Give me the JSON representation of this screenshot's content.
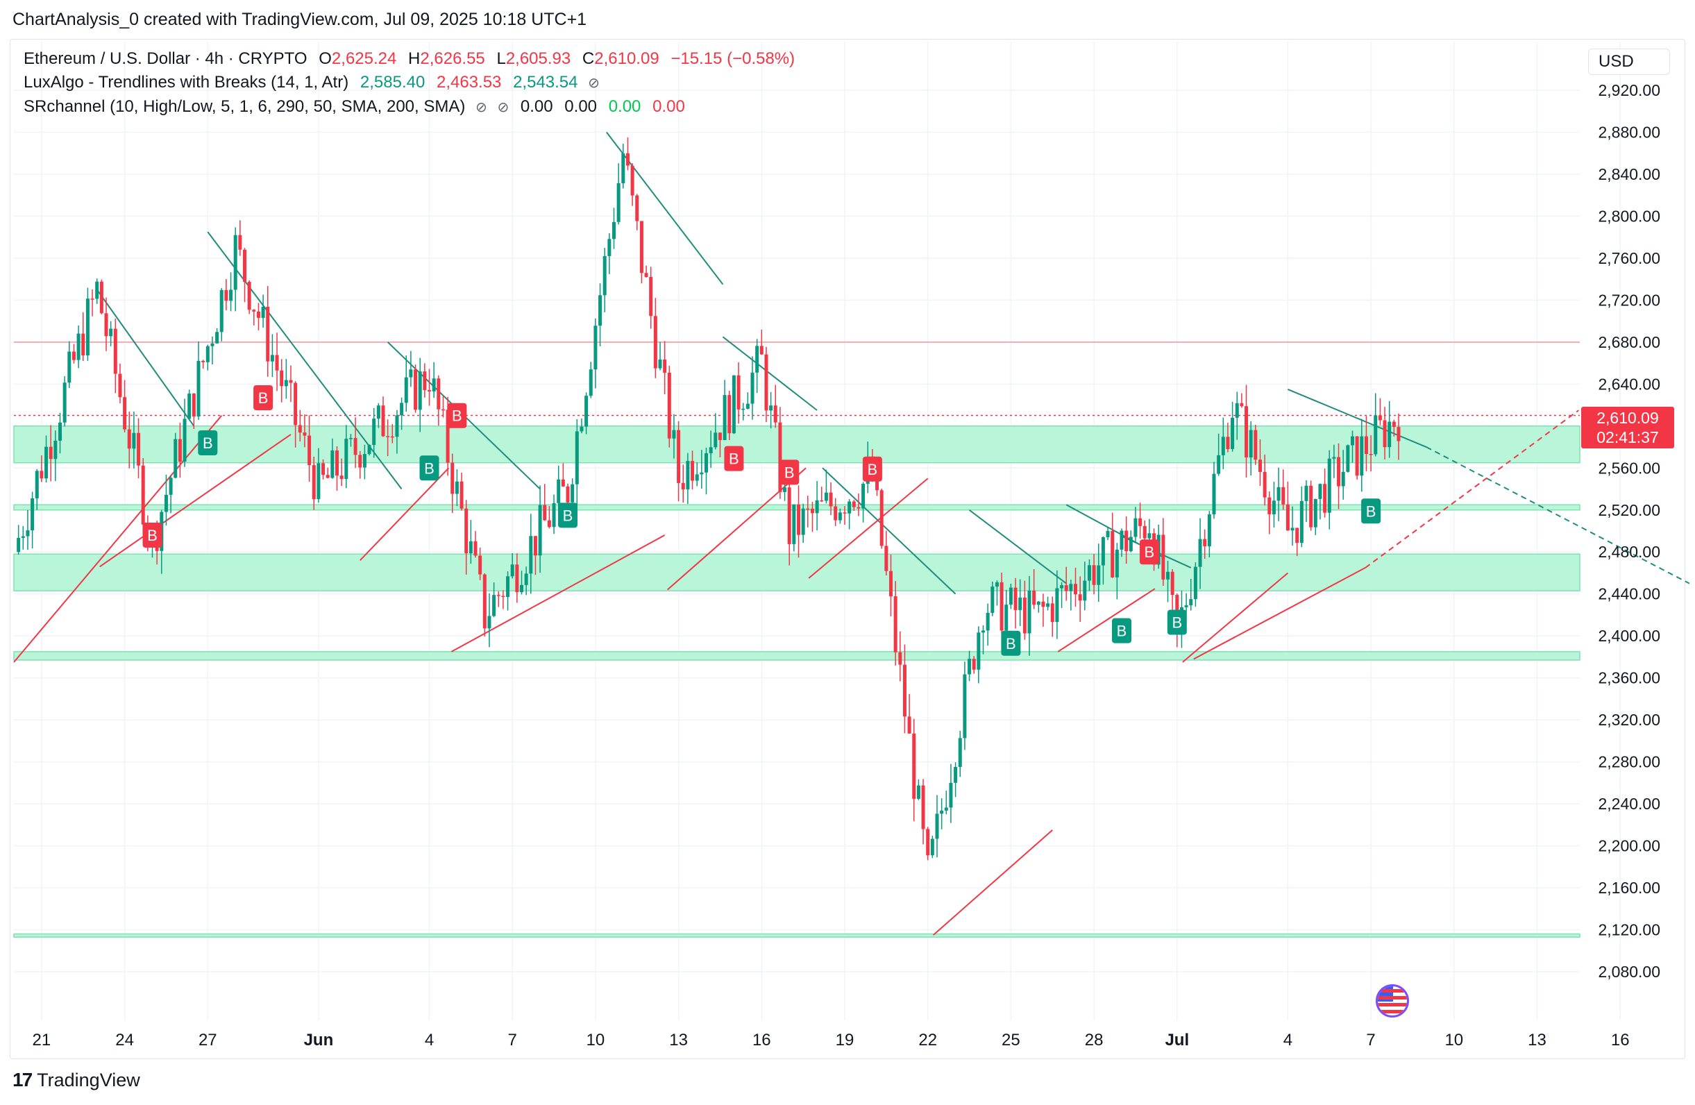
{
  "header": {
    "attribution": "ChartAnalysis_0 created with TradingView.com, Jul 09, 2025 10:18 UTC+1"
  },
  "legend": {
    "symbol": "Ethereum / U.S. Dollar · 4h · CRYPTO",
    "ohlc": {
      "o_label": "O",
      "o": "2,625.24",
      "h_label": "H",
      "h": "2,626.55",
      "l_label": "L",
      "l": "2,605.93",
      "c_label": "C",
      "c": "2,610.09",
      "change": "−15.15 (−0.58%)"
    },
    "indicator1": {
      "name": "LuxAlgo - Trendlines with Breaks (14, 1, Atr)",
      "v1": "2,585.40",
      "v2": "2,463.53",
      "v3": "2,543.54",
      "icon": "visibility-off-icon"
    },
    "indicator2": {
      "name": "SRchannel (10, High/Low, 5, 1, 6, 290, 50, SMA, 200, SMA)",
      "v1": "0.00",
      "v2": "0.00",
      "v3": "0.00",
      "v4": "0.00",
      "icons": [
        "visibility-off-icon",
        "visibility-off-icon"
      ]
    }
  },
  "price_axis": {
    "currency": "USD",
    "last_price": "2,610.09",
    "countdown": "02:41:37"
  },
  "footer": {
    "brand": "TradingView"
  },
  "colors": {
    "up": "#089981",
    "down": "#f23645",
    "zone": "#b9f6d9",
    "zone_border": "#7ee2b0",
    "resistance": "#f7a8b0"
  },
  "chart_data": {
    "type": "candlestick",
    "title": "Ethereum / U.S. Dollar · 4h · CRYPTO",
    "y_ticks": [
      2920,
      2880,
      2840,
      2800,
      2760,
      2720,
      2680,
      2640,
      2600,
      2560,
      2520,
      2480,
      2440,
      2400,
      2360,
      2320,
      2280,
      2240,
      2200,
      2160,
      2120,
      2080
    ],
    "y_tick_labels": [
      "2,920.00",
      "2,880.00",
      "2,840.00",
      "2,800.00",
      "2,760.00",
      "2,720.00",
      "2,680.00",
      "2,640.00",
      "2,600.00",
      "2,560.00",
      "2,520.00",
      "2,480.00",
      "2,440.00",
      "2,400.00",
      "2,360.00",
      "2,320.00",
      "2,280.00",
      "2,240.00",
      "2,200.00",
      "2,160.00",
      "2,120.00",
      "2,080.00"
    ],
    "ylim": [
      2052,
      2960
    ],
    "x_labels": [
      "21",
      "24",
      "27",
      "Jun",
      "4",
      "7",
      "10",
      "13",
      "16",
      "19",
      "22",
      "25",
      "28",
      "Jul",
      "4",
      "7",
      "10",
      "13",
      "16"
    ],
    "x_range_days": [
      "May 20",
      "Jul 16"
    ],
    "support_resistance_zones": [
      {
        "low": 2565,
        "high": 2600
      },
      {
        "low": 2520,
        "high": 2525
      },
      {
        "low": 2443,
        "high": 2478
      },
      {
        "low": 2377,
        "high": 2385
      },
      {
        "low": 2113,
        "high": 2116
      }
    ],
    "resistance_line": 2680,
    "last_price_line": 2610.09,
    "series": [
      {
        "name": "ETHUSD 4h",
        "ohlc_path_description": "see candles",
        "key_points": [
          {
            "date": "May 20",
            "close": 2480
          },
          {
            "date": "May 23",
            "close": 2730
          },
          {
            "date": "May 25",
            "close": 2490
          },
          {
            "date": "May 28",
            "close": 2770
          },
          {
            "date": "May 31",
            "close": 2540
          },
          {
            "date": "Jun 4",
            "close": 2650
          },
          {
            "date": "Jun 6",
            "close": 2420
          },
          {
            "date": "Jun 9",
            "close": 2540
          },
          {
            "date": "Jun 11",
            "close": 2860
          },
          {
            "date": "Jun 13",
            "close": 2550
          },
          {
            "date": "Jun 16",
            "close": 2660
          },
          {
            "date": "Jun 17",
            "close": 2500
          },
          {
            "date": "Jun 20",
            "close": 2550
          },
          {
            "date": "Jun 22",
            "close": 2170
          },
          {
            "date": "Jun 24",
            "close": 2430
          },
          {
            "date": "Jun 26",
            "close": 2420
          },
          {
            "date": "Jun 30",
            "close": 2510
          },
          {
            "date": "Jul 1",
            "close": 2400
          },
          {
            "date": "Jul 3",
            "close": 2620
          },
          {
            "date": "Jul 5",
            "close": 2500
          },
          {
            "date": "Jul 7",
            "close": 2560
          },
          {
            "date": "Jul 9",
            "close": 2610.09
          }
        ]
      }
    ],
    "signals": [
      {
        "label": "B",
        "type": "buy",
        "date": "May 27"
      },
      {
        "label": "B",
        "type": "sell",
        "date": "May 25"
      },
      {
        "label": "B",
        "type": "sell",
        "date": "May 29"
      },
      {
        "label": "B",
        "type": "buy",
        "date": "Jun 4"
      },
      {
        "label": "B",
        "type": "sell",
        "date": "Jun 5"
      },
      {
        "label": "B",
        "type": "buy",
        "date": "Jun 9"
      },
      {
        "label": "B",
        "type": "sell",
        "date": "Jun 15"
      },
      {
        "label": "B",
        "type": "sell",
        "date": "Jun 17"
      },
      {
        "label": "B",
        "type": "sell",
        "date": "Jun 20"
      },
      {
        "label": "B",
        "type": "buy",
        "date": "Jun 25"
      },
      {
        "label": "B",
        "type": "buy",
        "date": "Jun 29"
      },
      {
        "label": "B",
        "type": "sell",
        "date": "Jun 30"
      },
      {
        "label": "B",
        "type": "buy",
        "date": "Jul 1"
      },
      {
        "label": "B",
        "type": "buy",
        "date": "Jul 8"
      }
    ]
  }
}
